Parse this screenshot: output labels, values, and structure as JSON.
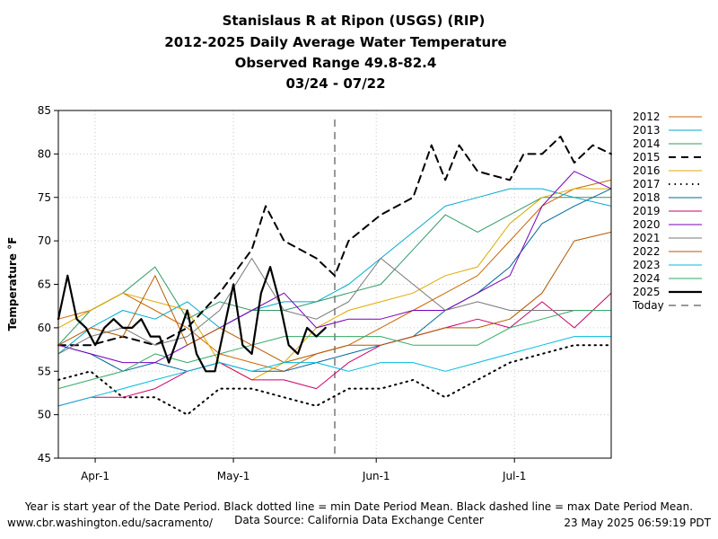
{
  "chart_data": {
    "type": "line",
    "title_lines": [
      "Stanislaus R at Ripon (USGS) (RIP)",
      "2012-2025 Daily Average Water Temperature",
      "Observed Range 49.8-82.4",
      "03/24 - 07/22"
    ],
    "ylabel": "Temperature °F",
    "ylim": [
      45,
      85
    ],
    "yticks": [
      45,
      50,
      55,
      60,
      65,
      70,
      75,
      80,
      85
    ],
    "x_range": [
      "03/24",
      "07/22"
    ],
    "x_ticks": [
      {
        "date": "04/01",
        "label": "Apr-1"
      },
      {
        "date": "05/01",
        "label": "May-1"
      },
      {
        "date": "06/01",
        "label": "Jun-1"
      },
      {
        "date": "07/01",
        "label": "Jul-1"
      }
    ],
    "grid": true,
    "legend_position": "right",
    "today": {
      "date": "05/23",
      "label": "Today",
      "color": "#999999"
    },
    "series": [
      {
        "name": "2012",
        "color": "#cc6600",
        "style": "solid",
        "width": 1,
        "points": [
          [
            "03/24",
            61
          ],
          [
            "03/31",
            62
          ],
          [
            "04/07",
            64
          ],
          [
            "04/14",
            62
          ],
          [
            "04/21",
            60
          ],
          [
            "04/28",
            57
          ],
          [
            "05/05",
            56
          ],
          [
            "05/12",
            55
          ],
          [
            "05/19",
            57
          ],
          [
            "05/26",
            58
          ],
          [
            "06/02",
            60
          ],
          [
            "06/09",
            62
          ],
          [
            "06/16",
            64
          ],
          [
            "06/23",
            66
          ],
          [
            "06/30",
            70
          ],
          [
            "07/07",
            74
          ],
          [
            "07/14",
            76
          ],
          [
            "07/22",
            77
          ]
        ]
      },
      {
        "name": "2013",
        "color": "#00aacc",
        "style": "solid",
        "width": 1,
        "points": [
          [
            "03/24",
            57
          ],
          [
            "03/31",
            60
          ],
          [
            "04/07",
            62
          ],
          [
            "04/14",
            61
          ],
          [
            "04/21",
            63
          ],
          [
            "04/28",
            60
          ],
          [
            "05/05",
            62
          ],
          [
            "05/12",
            63
          ],
          [
            "05/19",
            63
          ],
          [
            "05/26",
            65
          ],
          [
            "06/02",
            68
          ],
          [
            "06/09",
            71
          ],
          [
            "06/16",
            74
          ],
          [
            "06/23",
            75
          ],
          [
            "06/30",
            76
          ],
          [
            "07/07",
            76
          ],
          [
            "07/14",
            75
          ],
          [
            "07/22",
            74
          ]
        ]
      },
      {
        "name": "2014",
        "color": "#339966",
        "style": "solid",
        "width": 1,
        "points": [
          [
            "03/24",
            58
          ],
          [
            "03/31",
            62
          ],
          [
            "04/07",
            64
          ],
          [
            "04/14",
            67
          ],
          [
            "04/21",
            61
          ],
          [
            "04/28",
            63
          ],
          [
            "05/05",
            62
          ],
          [
            "05/12",
            62
          ],
          [
            "05/19",
            63
          ],
          [
            "05/26",
            64
          ],
          [
            "06/02",
            65
          ],
          [
            "06/09",
            69
          ],
          [
            "06/16",
            73
          ],
          [
            "06/23",
            71
          ],
          [
            "06/30",
            73
          ],
          [
            "07/07",
            75
          ],
          [
            "07/14",
            75
          ],
          [
            "07/22",
            75
          ]
        ]
      },
      {
        "name": "2015",
        "color": "#000000",
        "style": "dashed",
        "width": 2,
        "points": [
          [
            "03/24",
            58
          ],
          [
            "03/31",
            58
          ],
          [
            "04/07",
            59
          ],
          [
            "04/14",
            58
          ],
          [
            "04/21",
            60
          ],
          [
            "04/28",
            64
          ],
          [
            "05/05",
            69
          ],
          [
            "05/08",
            74
          ],
          [
            "05/12",
            70
          ],
          [
            "05/19",
            68
          ],
          [
            "05/23",
            66
          ],
          [
            "05/26",
            70
          ],
          [
            "06/02",
            73
          ],
          [
            "06/09",
            75
          ],
          [
            "06/13",
            81
          ],
          [
            "06/16",
            77
          ],
          [
            "06/19",
            81
          ],
          [
            "06/23",
            78
          ],
          [
            "06/30",
            77
          ],
          [
            "07/03",
            80
          ],
          [
            "07/07",
            80
          ],
          [
            "07/11",
            82
          ],
          [
            "07/14",
            79
          ],
          [
            "07/18",
            81
          ],
          [
            "07/22",
            80
          ]
        ]
      },
      {
        "name": "2016",
        "color": "#ddaa00",
        "style": "solid",
        "width": 1,
        "points": [
          [
            "03/24",
            60
          ],
          [
            "03/31",
            62
          ],
          [
            "04/07",
            64
          ],
          [
            "04/14",
            63
          ],
          [
            "04/21",
            62
          ],
          [
            "04/28",
            56
          ],
          [
            "05/05",
            54
          ],
          [
            "05/12",
            56
          ],
          [
            "05/19",
            60
          ],
          [
            "05/26",
            62
          ],
          [
            "06/02",
            63
          ],
          [
            "06/09",
            64
          ],
          [
            "06/16",
            66
          ],
          [
            "06/23",
            67
          ],
          [
            "06/30",
            72
          ],
          [
            "07/07",
            75
          ],
          [
            "07/14",
            76
          ],
          [
            "07/22",
            76
          ]
        ]
      },
      {
        "name": "2017",
        "color": "#000000",
        "style": "dotted",
        "width": 2,
        "points": [
          [
            "03/24",
            54
          ],
          [
            "03/31",
            55
          ],
          [
            "04/07",
            52
          ],
          [
            "04/14",
            52
          ],
          [
            "04/21",
            50
          ],
          [
            "04/28",
            53
          ],
          [
            "05/05",
            53
          ],
          [
            "05/12",
            52
          ],
          [
            "05/19",
            51
          ],
          [
            "05/26",
            53
          ],
          [
            "06/02",
            53
          ],
          [
            "06/09",
            54
          ],
          [
            "06/16",
            52
          ],
          [
            "06/23",
            54
          ],
          [
            "06/30",
            56
          ],
          [
            "07/07",
            57
          ],
          [
            "07/14",
            58
          ],
          [
            "07/22",
            58
          ]
        ]
      },
      {
        "name": "2018",
        "color": "#006699",
        "style": "solid",
        "width": 1,
        "points": [
          [
            "03/24",
            58
          ],
          [
            "03/31",
            57
          ],
          [
            "04/07",
            55
          ],
          [
            "04/14",
            56
          ],
          [
            "04/21",
            55
          ],
          [
            "04/28",
            56
          ],
          [
            "05/05",
            55
          ],
          [
            "05/12",
            55
          ],
          [
            "05/19",
            56
          ],
          [
            "05/26",
            57
          ],
          [
            "06/02",
            58
          ],
          [
            "06/09",
            59
          ],
          [
            "06/16",
            62
          ],
          [
            "06/23",
            64
          ],
          [
            "06/30",
            67
          ],
          [
            "07/07",
            72
          ],
          [
            "07/14",
            74
          ],
          [
            "07/22",
            76
          ]
        ]
      },
      {
        "name": "2019",
        "color": "#cc0066",
        "style": "solid",
        "width": 1,
        "points": [
          [
            "03/24",
            51
          ],
          [
            "03/31",
            52
          ],
          [
            "04/07",
            52
          ],
          [
            "04/14",
            53
          ],
          [
            "04/21",
            55
          ],
          [
            "04/28",
            56
          ],
          [
            "05/05",
            54
          ],
          [
            "05/12",
            54
          ],
          [
            "05/19",
            53
          ],
          [
            "05/26",
            56
          ],
          [
            "06/02",
            58
          ],
          [
            "06/09",
            59
          ],
          [
            "06/16",
            60
          ],
          [
            "06/23",
            61
          ],
          [
            "06/30",
            60
          ],
          [
            "07/07",
            63
          ],
          [
            "07/14",
            60
          ],
          [
            "07/22",
            64
          ]
        ]
      },
      {
        "name": "2020",
        "color": "#7700bb",
        "style": "solid",
        "width": 1,
        "points": [
          [
            "03/24",
            58
          ],
          [
            "03/31",
            57
          ],
          [
            "04/07",
            56
          ],
          [
            "04/14",
            56
          ],
          [
            "04/21",
            58
          ],
          [
            "04/28",
            60
          ],
          [
            "05/05",
            62
          ],
          [
            "05/12",
            64
          ],
          [
            "05/19",
            60
          ],
          [
            "05/26",
            61
          ],
          [
            "06/02",
            61
          ],
          [
            "06/09",
            62
          ],
          [
            "06/16",
            62
          ],
          [
            "06/23",
            64
          ],
          [
            "06/30",
            66
          ],
          [
            "07/07",
            74
          ],
          [
            "07/14",
            78
          ],
          [
            "07/22",
            76
          ]
        ]
      },
      {
        "name": "2021",
        "color": "#777777",
        "style": "solid",
        "width": 1,
        "points": [
          [
            "03/24",
            57
          ],
          [
            "03/31",
            59
          ],
          [
            "04/07",
            60
          ],
          [
            "04/14",
            58
          ],
          [
            "04/21",
            59
          ],
          [
            "04/28",
            62
          ],
          [
            "05/05",
            68
          ],
          [
            "05/12",
            62
          ],
          [
            "05/19",
            61
          ],
          [
            "05/26",
            63
          ],
          [
            "06/02",
            68
          ],
          [
            "06/09",
            65
          ],
          [
            "06/16",
            62
          ],
          [
            "06/23",
            63
          ],
          [
            "06/30",
            62
          ],
          [
            "07/07",
            62
          ],
          [
            "07/14",
            62
          ],
          [
            "07/22",
            62
          ]
        ]
      },
      {
        "name": "2022",
        "color": "#b35900",
        "style": "solid",
        "width": 1,
        "points": [
          [
            "03/24",
            58
          ],
          [
            "03/31",
            60
          ],
          [
            "04/07",
            59
          ],
          [
            "04/14",
            66
          ],
          [
            "04/21",
            58
          ],
          [
            "04/28",
            60
          ],
          [
            "05/05",
            58
          ],
          [
            "05/12",
            56
          ],
          [
            "05/19",
            57
          ],
          [
            "05/26",
            58
          ],
          [
            "06/02",
            58
          ],
          [
            "06/09",
            59
          ],
          [
            "06/16",
            60
          ],
          [
            "06/23",
            60
          ],
          [
            "06/30",
            61
          ],
          [
            "07/07",
            64
          ],
          [
            "07/14",
            70
          ],
          [
            "07/22",
            71
          ]
        ]
      },
      {
        "name": "2023",
        "color": "#00bbdd",
        "style": "solid",
        "width": 1,
        "points": [
          [
            "03/24",
            51
          ],
          [
            "03/31",
            52
          ],
          [
            "04/07",
            53
          ],
          [
            "04/14",
            54
          ],
          [
            "04/21",
            55
          ],
          [
            "04/28",
            56
          ],
          [
            "05/05",
            55
          ],
          [
            "05/12",
            56
          ],
          [
            "05/19",
            56
          ],
          [
            "05/26",
            55
          ],
          [
            "06/02",
            56
          ],
          [
            "06/09",
            56
          ],
          [
            "06/16",
            55
          ],
          [
            "06/23",
            56
          ],
          [
            "06/30",
            57
          ],
          [
            "07/07",
            58
          ],
          [
            "07/14",
            59
          ],
          [
            "07/22",
            59
          ]
        ]
      },
      {
        "name": "2024",
        "color": "#33aa66",
        "style": "solid",
        "width": 1,
        "points": [
          [
            "03/24",
            53
          ],
          [
            "03/31",
            54
          ],
          [
            "04/07",
            55
          ],
          [
            "04/14",
            57
          ],
          [
            "04/21",
            56
          ],
          [
            "04/28",
            57
          ],
          [
            "05/05",
            58
          ],
          [
            "05/12",
            59
          ],
          [
            "05/19",
            59
          ],
          [
            "05/26",
            59
          ],
          [
            "06/02",
            59
          ],
          [
            "06/09",
            58
          ],
          [
            "06/16",
            58
          ],
          [
            "06/23",
            58
          ],
          [
            "06/30",
            60
          ],
          [
            "07/07",
            61
          ],
          [
            "07/14",
            62
          ],
          [
            "07/22",
            62
          ]
        ]
      },
      {
        "name": "2025",
        "color": "#000000",
        "style": "solid",
        "width": 2.2,
        "points": [
          [
            "03/24",
            61
          ],
          [
            "03/26",
            66
          ],
          [
            "03/28",
            61
          ],
          [
            "03/30",
            60
          ],
          [
            "04/01",
            58
          ],
          [
            "04/03",
            60
          ],
          [
            "04/05",
            61
          ],
          [
            "04/07",
            60
          ],
          [
            "04/09",
            60
          ],
          [
            "04/11",
            61
          ],
          [
            "04/13",
            59
          ],
          [
            "04/15",
            59
          ],
          [
            "04/17",
            56
          ],
          [
            "04/19",
            59
          ],
          [
            "04/21",
            62
          ],
          [
            "04/23",
            57
          ],
          [
            "04/25",
            55
          ],
          [
            "04/27",
            55
          ],
          [
            "04/29",
            60
          ],
          [
            "05/01",
            65
          ],
          [
            "05/03",
            58
          ],
          [
            "05/05",
            57
          ],
          [
            "05/07",
            64
          ],
          [
            "05/09",
            67
          ],
          [
            "05/11",
            63
          ],
          [
            "05/13",
            58
          ],
          [
            "05/15",
            57
          ],
          [
            "05/17",
            60
          ],
          [
            "05/19",
            59
          ],
          [
            "05/21",
            60
          ]
        ]
      }
    ]
  },
  "footer": {
    "note": "Year is start year of the Date Period. Black dotted line = min Date Period Mean. Black dashed line = max Date Period Mean.",
    "source": "Data Source: California Data Exchange Center",
    "url": "www.cbr.washington.edu/sacramento/",
    "timestamp": "23 May 2025 06:59:19 PDT"
  }
}
